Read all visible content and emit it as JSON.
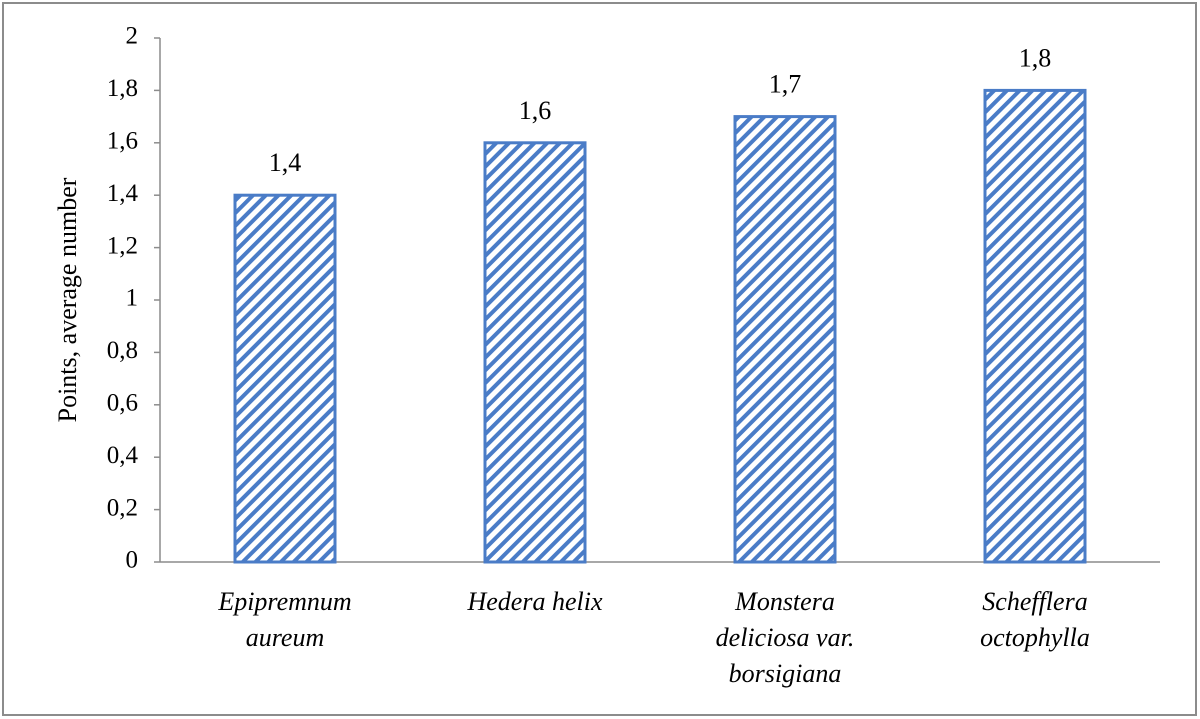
{
  "chart_data": {
    "type": "bar",
    "y_label": "Points, average number",
    "categories": [
      [
        "Epipremnum",
        "aureum"
      ],
      [
        "Hedera helix"
      ],
      [
        "Monstera",
        "deliciosa var.",
        "borsigiana"
      ],
      [
        "Schefflera",
        "octophylla"
      ]
    ],
    "values": [
      1.4,
      1.6,
      1.7,
      1.8
    ],
    "value_labels": [
      "1,4",
      "1,6",
      "1,7",
      "1,8"
    ],
    "color": "#4a7cc7",
    "ylim": [
      0,
      2
    ],
    "yticks": [
      0,
      {
        "value": 0.2,
        "label": "0,2"
      },
      {
        "value": 0.4,
        "label": "0,4"
      },
      {
        "value": 0.6,
        "label": "0,6"
      },
      {
        "value": 0.8,
        "label": "0,8"
      },
      1,
      {
        "value": 1.2,
        "label": "1,2"
      },
      {
        "value": 1.4,
        "label": "1,4"
      },
      {
        "value": 1.6,
        "label": "1,6"
      },
      {
        "value": 1.8,
        "label": "1,8"
      },
      2
    ],
    "grid": false
  }
}
